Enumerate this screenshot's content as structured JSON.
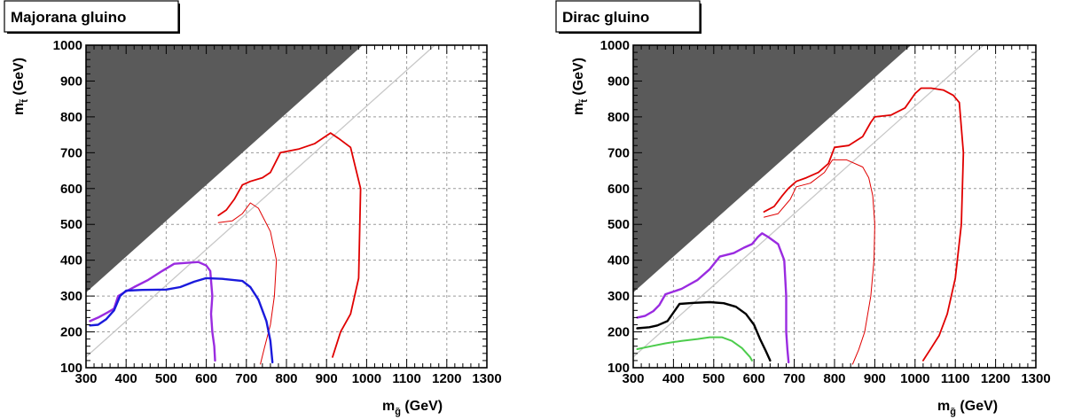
{
  "chart_data": [
    {
      "type": "line",
      "title": "Majorana gluino",
      "xlabel": "m",
      "xlabel_sub": "g̃",
      "xlabel_unit": " (GeV)",
      "ylabel": "m",
      "ylabel_sub": "t̃",
      "ylabel_unit": " (GeV)",
      "xlim": [
        300,
        1300
      ],
      "ylim": [
        100,
        1000
      ],
      "x_ticks": [
        300,
        400,
        500,
        600,
        700,
        800,
        900,
        1000,
        1100,
        1200,
        1300
      ],
      "y_ticks": [
        100,
        200,
        300,
        400,
        500,
        600,
        700,
        800,
        900,
        1000
      ],
      "grid": true,
      "excluded_region": {
        "color": "#5a5a5a",
        "boundary": [
          [
            300,
            310
          ],
          [
            990,
            1000
          ]
        ]
      },
      "diagonal": {
        "color": "#c8c8c8",
        "points": [
          [
            300,
            130
          ],
          [
            1170,
            1000
          ]
        ]
      },
      "series": [
        {
          "color": "#e00000",
          "width": 1.8,
          "points": [
            [
              630,
              525
            ],
            [
              650,
              540
            ],
            [
              670,
              570
            ],
            [
              690,
              610
            ],
            [
              710,
              620
            ],
            [
              740,
              630
            ],
            [
              760,
              645
            ],
            [
              785,
              700
            ],
            [
              830,
              710
            ],
            [
              870,
              725
            ],
            [
              910,
              755
            ],
            [
              930,
              740
            ],
            [
              960,
              715
            ],
            [
              985,
              600
            ],
            [
              980,
              350
            ],
            [
              960,
              250
            ],
            [
              935,
              200
            ],
            [
              915,
              130
            ]
          ]
        },
        {
          "color": "#e00000",
          "width": 1.0,
          "points": [
            [
              630,
              505
            ],
            [
              665,
              510
            ],
            [
              690,
              530
            ],
            [
              710,
              560
            ],
            [
              730,
              545
            ],
            [
              760,
              480
            ],
            [
              775,
              400
            ],
            [
              770,
              300
            ],
            [
              760,
              220
            ],
            [
              745,
              155
            ],
            [
              735,
              110
            ]
          ]
        },
        {
          "color": "#9a2be0",
          "width": 2.4,
          "points": [
            [
              310,
              230
            ],
            [
              330,
              240
            ],
            [
              355,
              255
            ],
            [
              370,
              265
            ],
            [
              380,
              300
            ],
            [
              395,
              310
            ],
            [
              420,
              325
            ],
            [
              455,
              345
            ],
            [
              490,
              370
            ],
            [
              520,
              390
            ],
            [
              580,
              395
            ],
            [
              600,
              385
            ],
            [
              610,
              370
            ],
            [
              615,
              300
            ],
            [
              612,
              250
            ],
            [
              615,
              200
            ],
            [
              620,
              160
            ],
            [
              622,
              120
            ]
          ]
        },
        {
          "color": "#1a1adc",
          "width": 2.4,
          "points": [
            [
              310,
              218
            ],
            [
              330,
              220
            ],
            [
              350,
              235
            ],
            [
              370,
              260
            ],
            [
              385,
              300
            ],
            [
              400,
              315
            ],
            [
              440,
              317
            ],
            [
              500,
              318
            ],
            [
              535,
              325
            ],
            [
              570,
              340
            ],
            [
              600,
              350
            ],
            [
              640,
              348
            ],
            [
              690,
              342
            ],
            [
              710,
              325
            ],
            [
              730,
              290
            ],
            [
              750,
              230
            ],
            [
              760,
              175
            ],
            [
              765,
              115
            ]
          ]
        }
      ]
    },
    {
      "type": "line",
      "title": "Dirac gluino",
      "xlabel": "m",
      "xlabel_sub": "g̃",
      "xlabel_unit": " (GeV)",
      "ylabel": "m",
      "ylabel_sub": "t̃",
      "ylabel_unit": " (GeV)",
      "xlim": [
        300,
        1300
      ],
      "ylim": [
        100,
        1000
      ],
      "x_ticks": [
        300,
        400,
        500,
        600,
        700,
        800,
        900,
        1000,
        1100,
        1200,
        1300
      ],
      "y_ticks": [
        100,
        200,
        300,
        400,
        500,
        600,
        700,
        800,
        900,
        1000
      ],
      "grid": true,
      "excluded_region": {
        "color": "#5a5a5a",
        "boundary": [
          [
            300,
            310
          ],
          [
            990,
            1000
          ]
        ]
      },
      "diagonal": {
        "color": "#c8c8c8",
        "points": [
          [
            300,
            130
          ],
          [
            1170,
            1000
          ]
        ]
      },
      "series": [
        {
          "color": "#e00000",
          "width": 1.8,
          "points": [
            [
              625,
              535
            ],
            [
              650,
              550
            ],
            [
              670,
              580
            ],
            [
              685,
              600
            ],
            [
              705,
              620
            ],
            [
              730,
              630
            ],
            [
              760,
              645
            ],
            [
              785,
              670
            ],
            [
              800,
              715
            ],
            [
              835,
              720
            ],
            [
              870,
              745
            ],
            [
              890,
              785
            ],
            [
              900,
              800
            ],
            [
              940,
              805
            ],
            [
              975,
              825
            ],
            [
              1000,
              865
            ],
            [
              1015,
              880
            ],
            [
              1040,
              880
            ],
            [
              1070,
              875
            ],
            [
              1095,
              860
            ],
            [
              1110,
              840
            ],
            [
              1120,
              700
            ],
            [
              1115,
              500
            ],
            [
              1100,
              350
            ],
            [
              1080,
              250
            ],
            [
              1060,
              190
            ],
            [
              1040,
              155
            ],
            [
              1020,
              120
            ]
          ]
        },
        {
          "color": "#e00000",
          "width": 1.0,
          "points": [
            [
              625,
              520
            ],
            [
              660,
              530
            ],
            [
              690,
              570
            ],
            [
              705,
              605
            ],
            [
              740,
              615
            ],
            [
              775,
              645
            ],
            [
              795,
              680
            ],
            [
              830,
              680
            ],
            [
              870,
              660
            ],
            [
              885,
              630
            ],
            [
              895,
              580
            ],
            [
              900,
              500
            ],
            [
              898,
              400
            ],
            [
              890,
              300
            ],
            [
              875,
              200
            ],
            [
              860,
              150
            ],
            [
              845,
              110
            ]
          ]
        },
        {
          "color": "#9a2be0",
          "width": 2.4,
          "points": [
            [
              310,
              240
            ],
            [
              330,
              245
            ],
            [
              350,
              258
            ],
            [
              365,
              275
            ],
            [
              380,
              305
            ],
            [
              420,
              320
            ],
            [
              460,
              345
            ],
            [
              490,
              375
            ],
            [
              515,
              410
            ],
            [
              550,
              420
            ],
            [
              575,
              435
            ],
            [
              595,
              445
            ],
            [
              610,
              465
            ],
            [
              620,
              475
            ],
            [
              635,
              465
            ],
            [
              660,
              445
            ],
            [
              675,
              400
            ],
            [
              680,
              300
            ],
            [
              680,
              200
            ],
            [
              683,
              150
            ],
            [
              686,
              115
            ]
          ]
        },
        {
          "color": "#000000",
          "width": 2.4,
          "points": [
            [
              310,
              210
            ],
            [
              340,
              213
            ],
            [
              360,
              218
            ],
            [
              385,
              230
            ],
            [
              415,
              278
            ],
            [
              450,
              281
            ],
            [
              490,
              283
            ],
            [
              525,
              280
            ],
            [
              555,
              270
            ],
            [
              580,
              250
            ],
            [
              600,
              220
            ],
            [
              615,
              180
            ],
            [
              628,
              150
            ],
            [
              640,
              120
            ]
          ]
        },
        {
          "color": "#4ccc4c",
          "width": 2.0,
          "points": [
            [
              310,
              152
            ],
            [
              345,
              160
            ],
            [
              380,
              168
            ],
            [
              420,
              175
            ],
            [
              460,
              180
            ],
            [
              490,
              185
            ],
            [
              520,
              185
            ],
            [
              545,
              175
            ],
            [
              570,
              155
            ],
            [
              590,
              130
            ],
            [
              595,
              120
            ]
          ]
        }
      ]
    }
  ]
}
